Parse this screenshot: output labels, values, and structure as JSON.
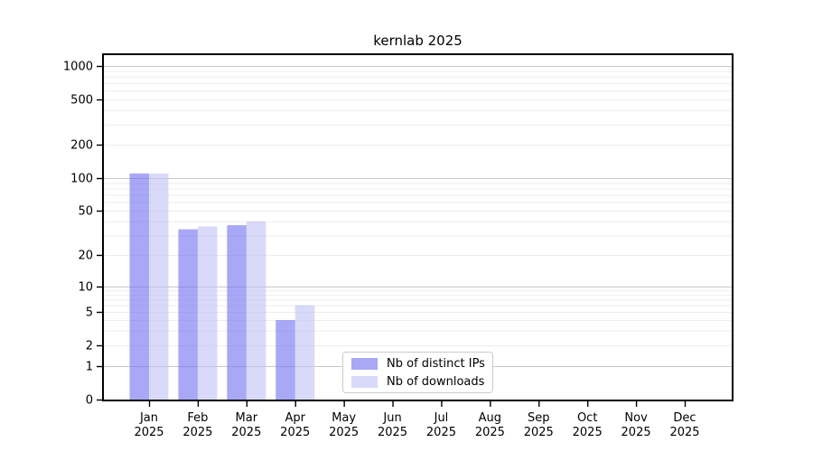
{
  "title": "kernlab 2025",
  "chart_data": {
    "type": "bar",
    "title": "kernlab 2025",
    "categories": [
      "Jan",
      "Feb",
      "Mar",
      "Apr",
      "May",
      "Jun",
      "Jul",
      "Aug",
      "Sep",
      "Oct",
      "Nov",
      "Dec"
    ],
    "category_year": "2025",
    "series": [
      {
        "name": "Nb of distinct IPs",
        "base_color": "#6e6ef2",
        "opacity": 0.6,
        "rendered_color": "#a8a8f7",
        "values": [
          110,
          34,
          37,
          4,
          0,
          0,
          0,
          0,
          0,
          0,
          0,
          0
        ]
      },
      {
        "name": "Nb of downloads",
        "base_color": "#c0c0f5",
        "opacity": 0.6,
        "rendered_color": "#d9d9f9",
        "values": [
          110,
          36,
          40,
          6,
          0,
          0,
          0,
          0,
          0,
          0,
          0,
          0
        ]
      }
    ],
    "xlabel": "",
    "ylabel": "",
    "y_ticks": [
      0,
      1,
      2,
      5,
      10,
      20,
      50,
      100,
      200,
      500,
      1000
    ],
    "y_scale": "log-like (0 drawn at baseline)",
    "ylim": [
      0,
      1300
    ],
    "grid": "horizontal, log minors",
    "grid_major_values": [
      1,
      10,
      100,
      1000
    ],
    "grid_major_color": "#c8c8c8",
    "grid_minor_color": "#ededed",
    "axis_color": "#000000",
    "legend_position": "lower center"
  },
  "legend": {
    "items": [
      {
        "label": "Nb of distinct IPs"
      },
      {
        "label": "Nb of downloads"
      }
    ]
  }
}
